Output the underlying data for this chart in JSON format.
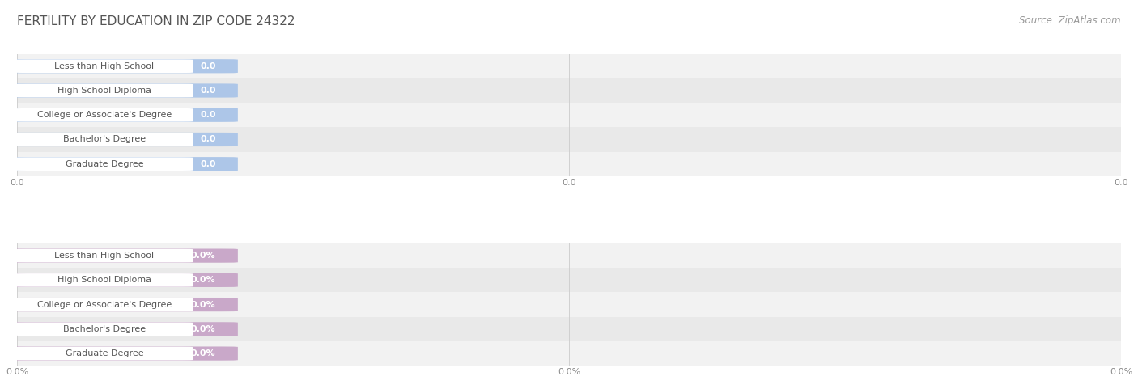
{
  "title": "FERTILITY BY EDUCATION IN ZIP CODE 24322",
  "source": "Source: ZipAtlas.com",
  "categories": [
    "Less than High School",
    "High School Diploma",
    "College or Associate's Degree",
    "Bachelor's Degree",
    "Graduate Degree"
  ],
  "values_top": [
    0.0,
    0.0,
    0.0,
    0.0,
    0.0
  ],
  "values_bottom": [
    0.0,
    0.0,
    0.0,
    0.0,
    0.0
  ],
  "bar_color_top": "#adc6e8",
  "bar_color_bottom": "#c9a8c9",
  "row_bg_odd": "#f0f0f0",
  "row_bg_even": "#e8e8e8",
  "grid_color": "#d0d0d0",
  "label_text_color": "#555555",
  "value_text_color": "#888888",
  "title_color": "#555555",
  "source_color": "#999999",
  "title_fontsize": 11,
  "source_fontsize": 8.5,
  "bar_label_fontsize": 8,
  "tick_fontsize": 8,
  "value_fontsize": 8
}
